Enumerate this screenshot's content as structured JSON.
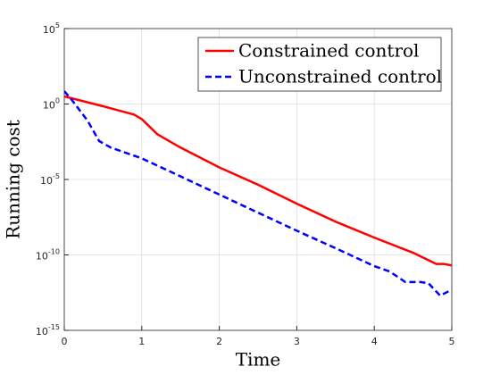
{
  "chart_data": {
    "type": "line",
    "xlabel": "Time",
    "ylabel": "Running cost",
    "xlim": [
      0,
      5
    ],
    "xticks": [
      0,
      1,
      2,
      3,
      4,
      5
    ],
    "ylim": [
      1e-15,
      100000.0
    ],
    "log_y": true,
    "yticks": [
      {
        "value": 1e-15,
        "label": "10^-15"
      },
      {
        "value": 1e-10,
        "label": "10^-10"
      },
      {
        "value": 1e-05,
        "label": "10^-5"
      },
      {
        "value": 1,
        "label": "10^0"
      },
      {
        "value": 100000.0,
        "label": "10^5"
      }
    ],
    "grid": true,
    "legend": "upper right",
    "series": [
      {
        "name": "Constrained control",
        "color": "#ff0000",
        "dash": false,
        "x": [
          0,
          0.5,
          0.9,
          1.0,
          1.2,
          1.5,
          2.0,
          2.5,
          3.0,
          3.5,
          4.0,
          4.5,
          4.6,
          4.8,
          4.9,
          5.0
        ],
        "values": [
          3.2,
          0.71,
          0.2,
          0.1,
          0.01,
          0.0013,
          6.3e-05,
          4.5e-06,
          2.5e-07,
          1.6e-08,
          1.4e-09,
          1.4e-10,
          7.9e-11,
          2.5e-11,
          2.5e-11,
          2e-11
        ]
      },
      {
        "name": "Unconstrained control",
        "color": "#0000ff",
        "dash": true,
        "x": [
          0,
          0.1,
          0.3,
          0.45,
          0.6,
          1.0,
          1.5,
          2.0,
          2.5,
          3.0,
          3.5,
          4.0,
          4.2,
          4.4,
          4.6,
          4.7,
          4.85,
          5.0
        ],
        "values": [
          7.1,
          1.8,
          0.079,
          0.0035,
          0.0013,
          0.00025,
          1.6e-05,
          1e-06,
          6.3e-08,
          4e-09,
          2.8e-10,
          1.8e-11,
          7.9e-12,
          1.6e-12,
          1.6e-12,
          1.3e-12,
          2e-13,
          5e-13
        ]
      }
    ]
  }
}
